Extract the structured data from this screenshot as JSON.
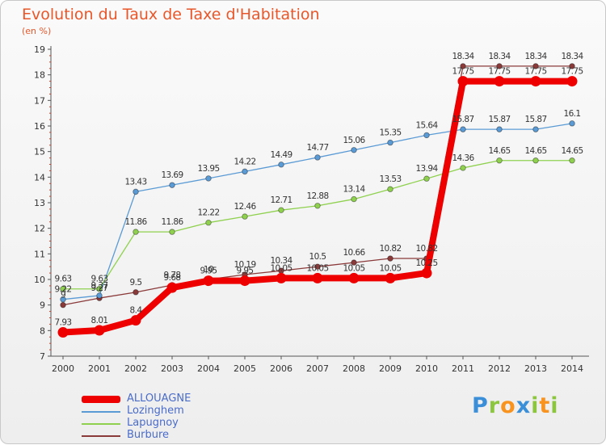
{
  "header": {
    "title": "Evolution du Taux de Taxe d'Habitation",
    "unit": "(en %)"
  },
  "logo": {
    "letters": [
      "P",
      "r",
      "o",
      "x",
      "i",
      "t",
      "i"
    ],
    "colors": [
      "#3a8fd8",
      "#8cc63f",
      "#f7931e",
      "#3a8fd8",
      "#8cc63f",
      "#f7931e",
      "#8cc63f"
    ]
  },
  "chart_data": {
    "type": "line",
    "x": [
      2000,
      2001,
      2002,
      2003,
      2004,
      2005,
      2006,
      2007,
      2008,
      2009,
      2010,
      2011,
      2012,
      2013,
      2014
    ],
    "ylim": [
      7,
      19
    ],
    "yticks": [
      7,
      8,
      9,
      10,
      11,
      12,
      13,
      14,
      15,
      16,
      17,
      18,
      19
    ],
    "grid": false,
    "legend_position": "bottom-left",
    "series": [
      {
        "name": "ALLOUAGNE",
        "color": "#ee0000",
        "values": [
          7.93,
          8.01,
          8.4,
          9.68,
          9.95,
          9.95,
          10.05,
          10.05,
          10.05,
          10.05,
          10.25,
          17.75,
          17.75,
          17.75,
          17.75
        ],
        "labels": [
          "7.93",
          "8.01",
          "8.4",
          "9.68",
          "9.95",
          "9.95",
          "10.05",
          "10.05",
          "10.05",
          "10.05",
          "10.25",
          "17.75",
          "17.75",
          "17.75",
          "17.75"
        ]
      },
      {
        "name": "Lozinghem",
        "color": "#5b9bd5",
        "values": [
          9.22,
          9.37,
          13.43,
          13.69,
          13.95,
          14.22,
          14.49,
          14.77,
          15.06,
          15.35,
          15.64,
          15.87,
          15.87,
          15.87,
          16.1
        ],
        "labels": [
          "9.22",
          "9.37",
          "13.43",
          "13.69",
          "13.95",
          "14.22",
          "14.49",
          "14.77",
          "15.06",
          "15.35",
          "15.64",
          "15.87",
          "15.87",
          "15.87",
          "16.1"
        ]
      },
      {
        "name": "Lapugnoy",
        "color": "#8fd14f",
        "values": [
          9.63,
          9.63,
          11.86,
          11.86,
          12.22,
          12.46,
          12.71,
          12.88,
          13.14,
          13.53,
          13.94,
          14.36,
          14.65,
          14.65,
          14.65
        ],
        "labels": [
          "9.63",
          "9.63",
          "11.86",
          "11.86",
          "12.22",
          "12.46",
          "12.71",
          "12.88",
          "13.14",
          "13.53",
          "13.94",
          "14.36",
          "14.65",
          "14.65",
          "14.65"
        ]
      },
      {
        "name": "Burbure",
        "color": "#8b3a3a",
        "values": [
          9.0,
          9.27,
          9.5,
          9.78,
          10.0,
          10.19,
          10.34,
          10.5,
          10.66,
          10.82,
          10.82,
          18.34,
          18.34,
          18.34,
          18.34
        ],
        "labels": [
          "9",
          "9.27",
          "9.5",
          "9.78",
          "10",
          "10.19",
          "10.34",
          "10.5",
          "10.66",
          "10.82",
          "10.82",
          "18.34",
          "18.34",
          "18.34",
          "18.34"
        ]
      }
    ]
  }
}
